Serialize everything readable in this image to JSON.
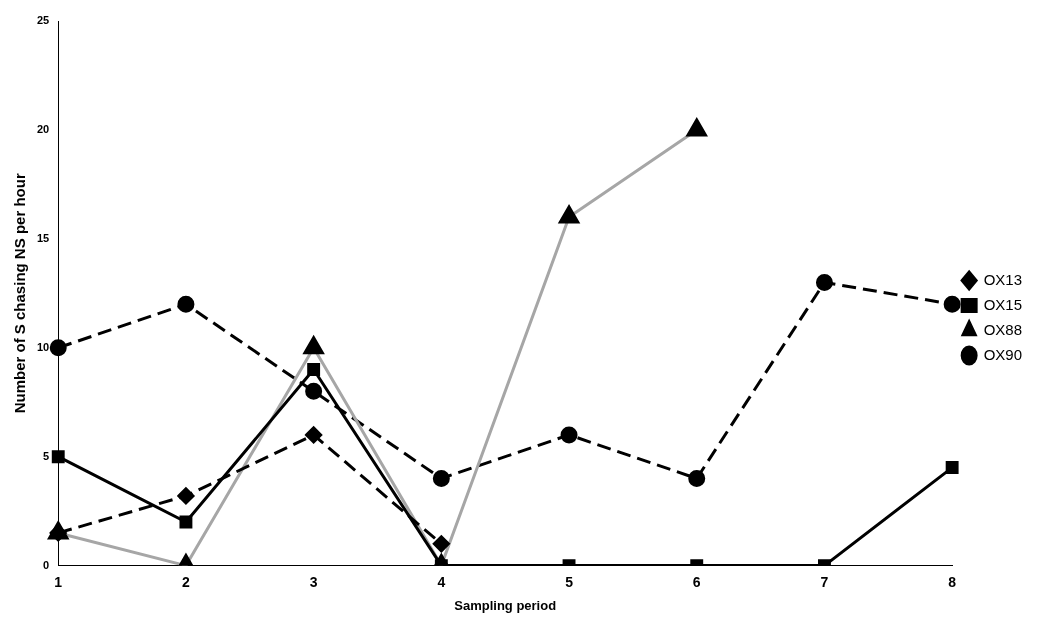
{
  "chart_data": {
    "type": "line",
    "xlabel": "Sampling period",
    "ylabel": "Number of S chasing NS per hour",
    "categories": [
      "1",
      "2",
      "3",
      "4",
      "5",
      "6",
      "7",
      "8"
    ],
    "ylim": [
      0,
      25
    ],
    "yticks": [
      0,
      5,
      10,
      15,
      20,
      25
    ],
    "grid": false,
    "legend": "right",
    "series": [
      {
        "name": "OX13",
        "color": "#000000",
        "marker": "diamond",
        "line_style": "dashed",
        "values": [
          1.5,
          3.2,
          6,
          1,
          null,
          null,
          null,
          null
        ]
      },
      {
        "name": "OX15",
        "color": "#000000",
        "marker": "square",
        "line_style": "solid",
        "values": [
          5,
          2,
          9,
          0,
          0,
          0,
          0,
          4.5
        ]
      },
      {
        "name": "OX88",
        "color": "#a6a6a6",
        "marker": "triangle",
        "line_style": "solid",
        "values": [
          1.5,
          0,
          10,
          0,
          16,
          20,
          null,
          null
        ]
      },
      {
        "name": "OX90",
        "color": "#000000",
        "marker": "circle",
        "line_style": "dashed",
        "values": [
          10,
          12,
          8,
          4,
          6,
          4,
          13,
          12
        ]
      }
    ]
  }
}
